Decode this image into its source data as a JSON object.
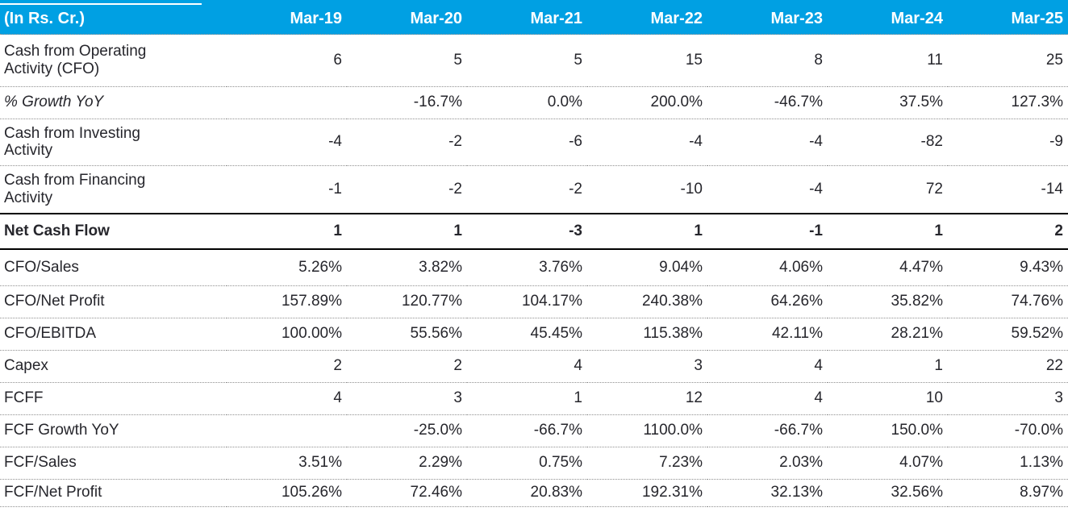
{
  "colors": {
    "header_bg": "#00A0E3",
    "header_text": "#FFFFFF",
    "body_text": "#26262C",
    "dotted_border": "#8F8F8F",
    "solid_border": "#000000"
  },
  "chart_data": {
    "type": "table",
    "columns": [
      "(In Rs. Cr.)",
      "Mar-19",
      "Mar-20",
      "Mar-21",
      "Mar-22",
      "Mar-23",
      "Mar-24",
      "Mar-25"
    ],
    "rows": [
      {
        "label": "Cash from Operating Activity (CFO)",
        "style": "normal",
        "values": [
          "6",
          "5",
          "5",
          "15",
          "8",
          "11",
          "25"
        ]
      },
      {
        "label": "% Growth YoY",
        "style": "italic",
        "values": [
          "",
          "-16.7%",
          "0.0%",
          "200.0%",
          "-46.7%",
          "37.5%",
          "127.3%"
        ]
      },
      {
        "label": "Cash from Investing Activity",
        "style": "normal",
        "values": [
          "-4",
          "-2",
          "-6",
          "-4",
          "-4",
          "-82",
          "-9"
        ]
      },
      {
        "label": "Cash from Financing Activity",
        "style": "normal",
        "values": [
          "-1",
          "-2",
          "-2",
          "-10",
          "-4",
          "72",
          "-14"
        ]
      },
      {
        "label": "Net Cash Flow",
        "style": "bold",
        "values": [
          "1",
          "1",
          "-3",
          "1",
          "-1",
          "1",
          "2"
        ]
      },
      {
        "label": "CFO/Sales",
        "style": "normal",
        "values": [
          "5.26%",
          "3.82%",
          "3.76%",
          "9.04%",
          "4.06%",
          "4.47%",
          "9.43%"
        ]
      },
      {
        "label": "CFO/Net Profit",
        "style": "normal",
        "values": [
          "157.89%",
          "120.77%",
          "104.17%",
          "240.38%",
          "64.26%",
          "35.82%",
          "74.76%"
        ]
      },
      {
        "label": "CFO/EBITDA",
        "style": "normal",
        "values": [
          "100.00%",
          "55.56%",
          "45.45%",
          "115.38%",
          "42.11%",
          "28.21%",
          "59.52%"
        ]
      },
      {
        "label": "Capex",
        "style": "normal",
        "values": [
          "2",
          "2",
          "4",
          "3",
          "4",
          "1",
          "22"
        ]
      },
      {
        "label": "FCFF",
        "style": "normal",
        "values": [
          "4",
          "3",
          "1",
          "12",
          "4",
          "10",
          "3"
        ]
      },
      {
        "label": "FCF Growth YoY",
        "style": "normal",
        "values": [
          "",
          "-25.0%",
          "-66.7%",
          "1100.0%",
          "-66.7%",
          "150.0%",
          "-70.0%"
        ]
      },
      {
        "label": "FCF/Sales",
        "style": "normal",
        "values": [
          "3.51%",
          "2.29%",
          "0.75%",
          "7.23%",
          "2.03%",
          "4.07%",
          "1.13%"
        ]
      },
      {
        "label": "FCF/Net Profit",
        "style": "normal",
        "values": [
          "105.26%",
          "72.46%",
          "20.83%",
          "192.31%",
          "32.13%",
          "32.56%",
          "8.97%"
        ]
      }
    ]
  }
}
